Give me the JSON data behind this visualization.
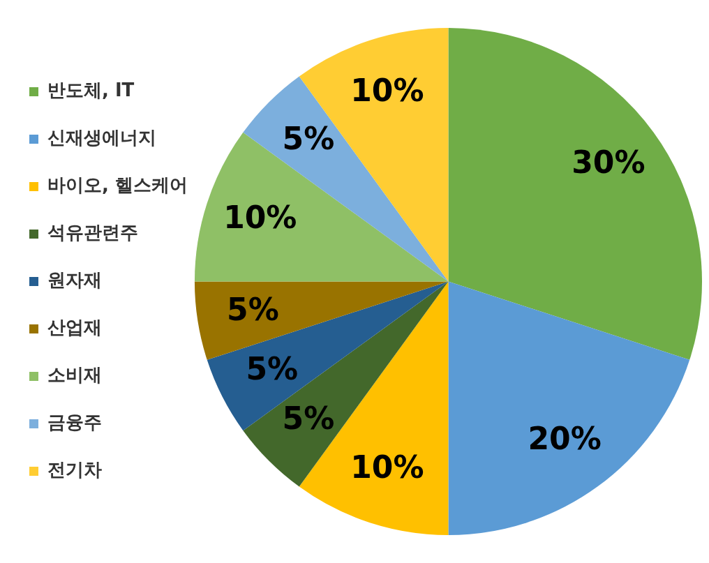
{
  "chart_data": {
    "type": "pie",
    "categories": [
      "반도체, IT",
      "신재생에너지",
      "바이오, 헬스케어",
      "석유관련주",
      "원자재",
      "산업재",
      "소비재",
      "금융주",
      "전기차"
    ],
    "values": [
      30,
      20,
      10,
      5,
      5,
      5,
      10,
      5,
      10
    ],
    "colors": [
      "#70ad47",
      "#5b9bd5",
      "#ffc000",
      "#43682b",
      "#255e91",
      "#997300",
      "#8fc066",
      "#7cafdd",
      "#ffcd33"
    ],
    "value_labels": [
      "30%",
      "20%",
      "10%",
      "5%",
      "5%",
      "5%",
      "10%",
      "5%",
      "10%"
    ],
    "legend": "left"
  }
}
